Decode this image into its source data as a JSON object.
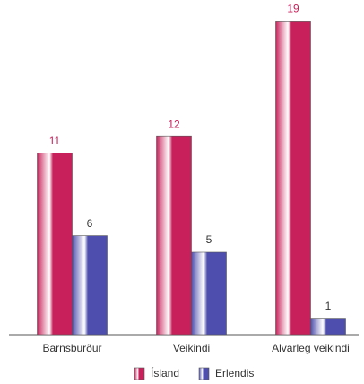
{
  "chart_data": {
    "type": "bar",
    "categories": [
      "Barnsburður",
      "Veikindi",
      "Alvarleg veikindi"
    ],
    "series": [
      {
        "name": "Ísland",
        "color": "#c8205a",
        "values": [
          11,
          12,
          19
        ]
      },
      {
        "name": "Erlendis",
        "color": "#4e4eae",
        "values": [
          6,
          5,
          1
        ]
      }
    ],
    "ylim": [
      0,
      20
    ],
    "grid": false
  }
}
